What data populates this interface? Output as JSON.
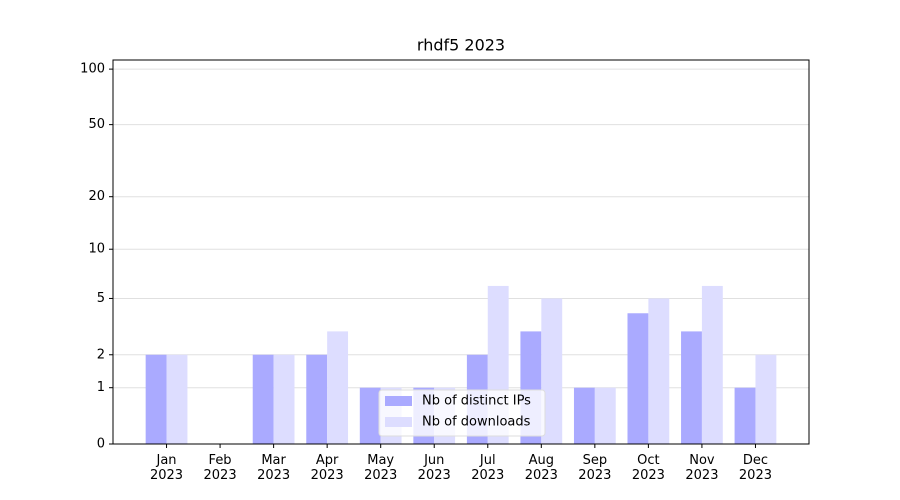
{
  "chart_data": {
    "type": "bar",
    "title": "rhdf5 2023",
    "categories": [
      "Jan 2023",
      "Feb 2023",
      "Mar 2023",
      "Apr 2023",
      "May 2023",
      "Jun 2023",
      "Jul 2023",
      "Aug 2023",
      "Sep 2023",
      "Oct 2023",
      "Nov 2023",
      "Dec 2023"
    ],
    "series": [
      {
        "name": "Nb of distinct IPs",
        "color": "#aaaaff",
        "values": [
          2,
          0,
          2,
          2,
          1,
          1,
          2,
          3,
          1,
          4,
          3,
          1
        ]
      },
      {
        "name": "Nb of downloads",
        "color": "#ddddff",
        "values": [
          2,
          0,
          2,
          3,
          1,
          1,
          6,
          5,
          1,
          5,
          6,
          2
        ]
      }
    ],
    "yscale": "log1p",
    "ylim": [
      0,
      112
    ],
    "yticks": [
      0,
      1,
      2,
      5,
      10,
      20,
      50,
      100
    ],
    "grid": true,
    "legend": "lower center"
  }
}
